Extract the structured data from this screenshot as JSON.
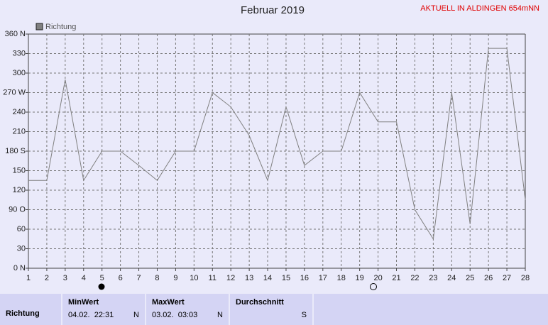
{
  "chart_data": {
    "type": "line",
    "title": "Februar 2019",
    "annotation": "AKTUELL IN ALDINGEN 654mNN",
    "x": [
      1,
      2,
      3,
      4,
      5,
      6,
      7,
      8,
      9,
      10,
      11,
      12,
      13,
      14,
      15,
      16,
      17,
      18,
      19,
      20,
      21,
      22,
      23,
      24,
      25,
      26,
      27,
      28
    ],
    "series": [
      {
        "name": "Richtung",
        "color": "#808080",
        "values": [
          135,
          135,
          290,
          135,
          180,
          180,
          158,
          135,
          180,
          180,
          270,
          248,
          204,
          135,
          248,
          158,
          180,
          180,
          270,
          225,
          225,
          90,
          45,
          270,
          68,
          338,
          338,
          105
        ]
      }
    ],
    "xlim": [
      1,
      28
    ],
    "ylim": [
      0,
      360
    ],
    "xticks": [
      1,
      2,
      3,
      4,
      5,
      6,
      7,
      8,
      9,
      10,
      11,
      12,
      13,
      14,
      15,
      16,
      17,
      18,
      19,
      20,
      21,
      22,
      23,
      24,
      25,
      26,
      27,
      28
    ],
    "yticks": [
      {
        "value": 0,
        "label": "0 N"
      },
      30,
      60,
      {
        "value": 90,
        "label": "90 O"
      },
      120,
      150,
      {
        "value": 180,
        "label": "180 S"
      },
      210,
      240,
      {
        "value": 270,
        "label": "270 W"
      },
      300,
      330,
      {
        "value": 360,
        "label": "360 N"
      }
    ],
    "grid": true
  },
  "stats": {
    "row_label": "Richtung",
    "columns": [
      {
        "header": "MinWert",
        "time": "04.02.  22:31",
        "dir": "N"
      },
      {
        "header": "MaxWert",
        "time": "03.02.  03:03",
        "dir": "N"
      },
      {
        "header": "Durchschnitt",
        "dir": "S"
      }
    ]
  }
}
